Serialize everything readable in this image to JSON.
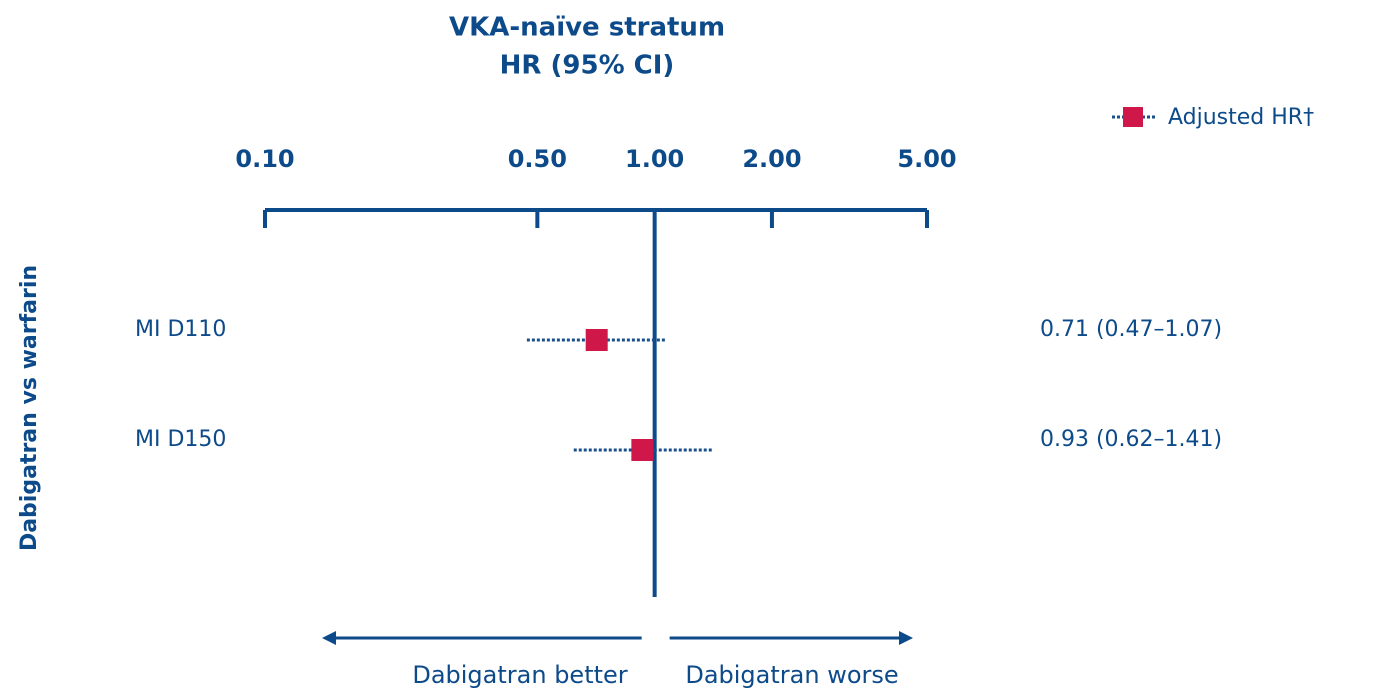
{
  "chart_data": {
    "type": "forest",
    "title": "VKA-naïve stratum",
    "subtitle": "HR (95% CI)",
    "y_label": "Dabigatran vs warfarin",
    "annotations": [
      "Dabigatran better",
      "Dabigatran worse"
    ],
    "categories": [
      "MI D110",
      "MI D150"
    ],
    "series": [
      {
        "name": "Adjusted HR†",
        "color": "#d0174a",
        "line_color": "#1a4f8b",
        "values": [
          0.71,
          0.93
        ],
        "lower": [
          0.47,
          0.62
        ],
        "upper": [
          1.07,
          1.41
        ],
        "value_labels": [
          "0.71 (0.47–1.07)",
          "0.93 (0.62–1.41)"
        ]
      }
    ],
    "xlim": [
      0.1,
      5
    ],
    "xticks": [
      {
        "value": 0.1,
        "label": "0.10"
      },
      {
        "value": 0.5,
        "label": "0.50"
      },
      {
        "value": 1,
        "label": "1.00"
      },
      {
        "value": 2,
        "label": "2.00"
      },
      {
        "value": 5,
        "label": "5.00"
      }
    ],
    "reference": 1,
    "log_scale": true,
    "legend": "top-right",
    "axis_color": "#0d4a8a"
  }
}
